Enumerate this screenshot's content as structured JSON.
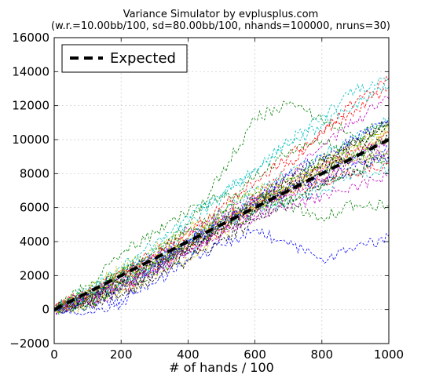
{
  "chart_data": {
    "type": "line",
    "title": "Variance Simulator by evplusplus.com",
    "subtitle": "(w.r.=10.00bb/100, sd=80.00bb/100, nhands=100000, nruns=30)",
    "xlabel": "# of hands / 100",
    "ylabel": "",
    "xlim": [
      0,
      1000
    ],
    "ylim": [
      -2000,
      16000
    ],
    "x_ticks": [
      0,
      200,
      400,
      600,
      800,
      1000
    ],
    "x_tick_labels": [
      "0",
      "200",
      "400",
      "600",
      "800",
      "1000"
    ],
    "y_ticks": [
      -2000,
      0,
      2000,
      4000,
      6000,
      8000,
      10000,
      12000,
      14000,
      16000
    ],
    "y_tick_labels": [
      "−2000",
      "0",
      "2000",
      "4000",
      "6000",
      "8000",
      "10000",
      "12000",
      "14000",
      "16000"
    ],
    "grid": true,
    "legend": {
      "position": "top-left",
      "entries": [
        "Expected"
      ]
    },
    "expected": {
      "name": "Expected",
      "x": [
        0,
        1000
      ],
      "y": [
        0,
        10000
      ],
      "color": "#000000"
    },
    "x": [
      0,
      100,
      200,
      300,
      400,
      500,
      600,
      700,
      800,
      900,
      1000
    ],
    "runs": [
      {
        "color": "#0000ff",
        "values": [
          0,
          200,
          600,
          1500,
          3000,
          3800,
          4700,
          3800,
          3000,
          3600,
          4300
        ]
      },
      {
        "color": "#0000ff",
        "values": [
          0,
          -200,
          300,
          2400,
          4000,
          5200,
          6300,
          7200,
          8200,
          8900,
          9600
        ]
      },
      {
        "color": "#008000",
        "values": [
          0,
          1400,
          3300,
          4500,
          5700,
          6700,
          6800,
          6200,
          5400,
          6200,
          6100
        ]
      },
      {
        "color": "#008000",
        "values": [
          0,
          500,
          2100,
          3000,
          5000,
          8000,
          11200,
          12100,
          11200,
          10200,
          11000
        ]
      },
      {
        "color": "#008000",
        "values": [
          0,
          1000,
          2200,
          2900,
          3700,
          5800,
          7800,
          9200,
          9900,
          9000,
          8800
        ]
      },
      {
        "color": "#ff0000",
        "values": [
          0,
          900,
          2000,
          3100,
          4200,
          5300,
          6500,
          8500,
          10500,
          12200,
          13500
        ]
      },
      {
        "color": "#ff0000",
        "values": [
          0,
          700,
          1700,
          2600,
          3500,
          4800,
          6000,
          7100,
          8300,
          9400,
          10400
        ]
      },
      {
        "color": "#ff0000",
        "values": [
          0,
          500,
          1200,
          2400,
          3800,
          5100,
          6300,
          6900,
          7500,
          8000,
          8600
        ]
      },
      {
        "color": "#00bfbf",
        "values": [
          0,
          800,
          2100,
          3500,
          5000,
          6600,
          8300,
          9900,
          11400,
          12900,
          13600
        ]
      },
      {
        "color": "#00bfbf",
        "values": [
          0,
          400,
          1500,
          2700,
          4200,
          5700,
          7000,
          8000,
          9100,
          10200,
          11300
        ]
      },
      {
        "color": "#00bfbf",
        "values": [
          0,
          600,
          1600,
          2500,
          3300,
          4900,
          5800,
          6400,
          7000,
          7900,
          8300
        ]
      },
      {
        "color": "#bf00bf",
        "values": [
          0,
          300,
          1100,
          2100,
          3600,
          4800,
          6200,
          7900,
          9600,
          11100,
          12400
        ]
      },
      {
        "color": "#bf00bf",
        "values": [
          0,
          700,
          1700,
          2600,
          3500,
          4500,
          5400,
          6000,
          6700,
          7300,
          7800
        ]
      },
      {
        "color": "#bf00bf",
        "values": [
          0,
          900,
          1900,
          3200,
          4700,
          5600,
          6600,
          7500,
          8500,
          9300,
          10000
        ]
      },
      {
        "color": "#bfbf00",
        "values": [
          0,
          600,
          1500,
          2900,
          4100,
          5100,
          6100,
          7000,
          7900,
          8800,
          9400
        ]
      },
      {
        "color": "#bfbf00",
        "values": [
          0,
          200,
          1000,
          2000,
          3000,
          4400,
          5900,
          7200,
          8400,
          9600,
          10700
        ]
      },
      {
        "color": "#bfbf00",
        "values": [
          0,
          1100,
          2400,
          3600,
          4700,
          5800,
          6900,
          7800,
          8700,
          9700,
          10600
        ]
      },
      {
        "color": "#000000",
        "values": [
          0,
          400,
          1300,
          2200,
          3300,
          4600,
          5800,
          7100,
          8500,
          9700,
          10800
        ]
      },
      {
        "color": "#000000",
        "values": [
          0,
          800,
          1800,
          2700,
          3900,
          5000,
          6400,
          7600,
          8800,
          9900,
          11000
        ]
      },
      {
        "color": "#000000",
        "values": [
          0,
          300,
          900,
          1800,
          2900,
          4100,
          5200,
          6200,
          7300,
          8200,
          9000
        ]
      },
      {
        "color": "#0000ff",
        "values": [
          0,
          500,
          1400,
          2500,
          3800,
          5200,
          6600,
          7900,
          9000,
          10100,
          11200
        ]
      },
      {
        "color": "#0000ff",
        "values": [
          0,
          900,
          2000,
          3000,
          4100,
          5100,
          6100,
          7000,
          7600,
          8400,
          9000
        ]
      },
      {
        "color": "#008000",
        "values": [
          0,
          300,
          1200,
          2300,
          3600,
          5000,
          6300,
          7200,
          8100,
          9000,
          9900
        ]
      },
      {
        "color": "#008000",
        "values": [
          0,
          700,
          1600,
          2700,
          3800,
          4800,
          5700,
          6500,
          7400,
          8200,
          9100
        ]
      },
      {
        "color": "#ff0000",
        "values": [
          0,
          1100,
          2300,
          3300,
          4600,
          6000,
          7500,
          9000,
          10400,
          11800,
          12900
        ]
      },
      {
        "color": "#00bfbf",
        "values": [
          0,
          1200,
          2500,
          3900,
          5400,
          6800,
          8200,
          9600,
          10900,
          12100,
          13100
        ]
      },
      {
        "color": "#bf00bf",
        "values": [
          0,
          400,
          1400,
          2300,
          3400,
          4400,
          5600,
          6700,
          7700,
          8600,
          9500
        ]
      },
      {
        "color": "#bfbf00",
        "values": [
          0,
          800,
          1900,
          2800,
          4000,
          5200,
          6300,
          7400,
          8400,
          9300,
          10200
        ]
      },
      {
        "color": "#000000",
        "values": [
          0,
          600,
          1500,
          2600,
          3700,
          4700,
          5900,
          7000,
          8000,
          9100,
          10100
        ]
      },
      {
        "color": "#008000",
        "values": [
          0,
          1000,
          2100,
          3400,
          4600,
          5500,
          6500,
          7700,
          8800,
          9800,
          10900
        ]
      }
    ]
  }
}
